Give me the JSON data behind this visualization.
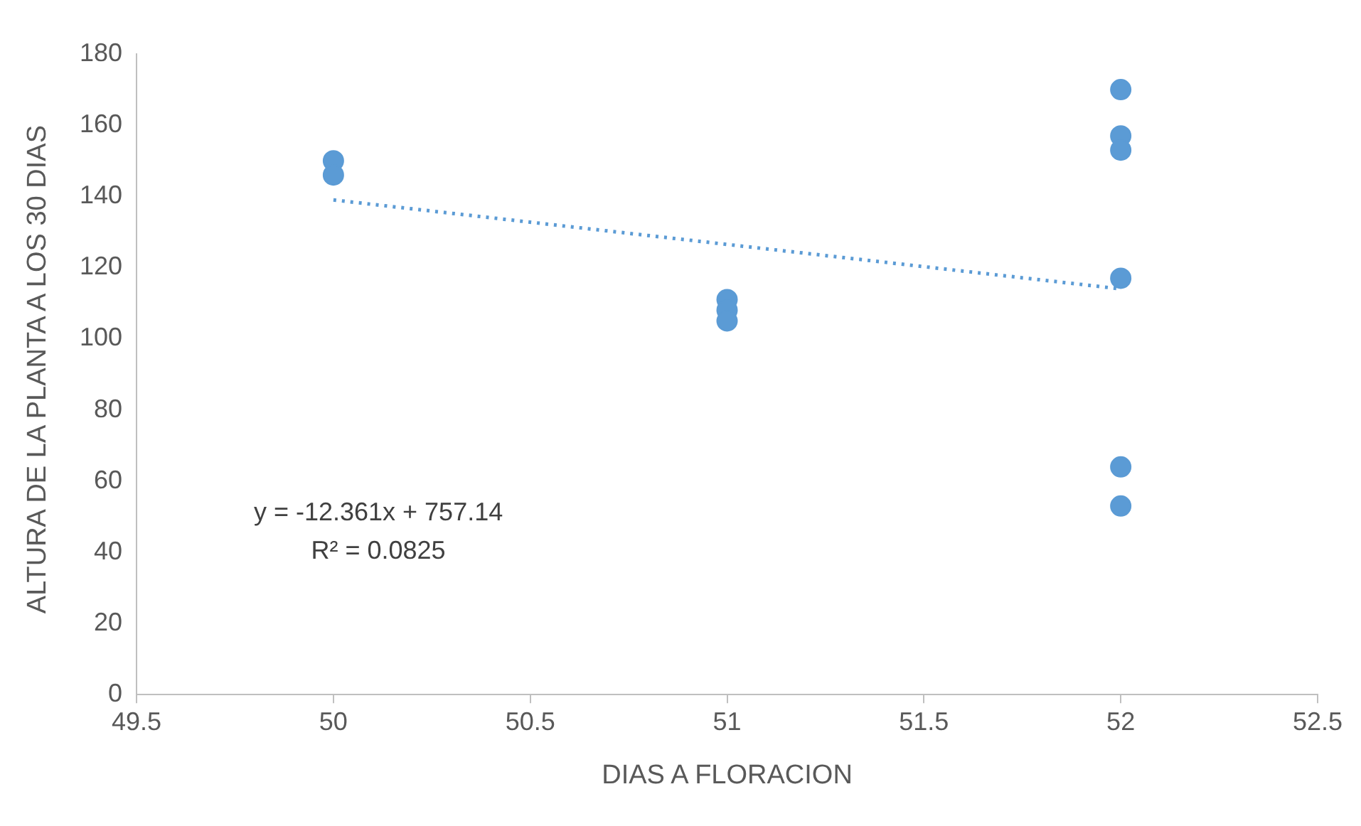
{
  "chart_data": {
    "type": "scatter",
    "xlabel": "DIAS A FLORACION",
    "ylabel": "ALTURA DE LA PLANTA A LOS 30 DIAS",
    "xlim": [
      49.5,
      52.5
    ],
    "xticks": [
      49.5,
      50,
      50.5,
      51,
      51.5,
      52,
      52.5
    ],
    "ylim": [
      0,
      180
    ],
    "yticks": [
      0,
      20,
      40,
      60,
      80,
      100,
      120,
      140,
      160,
      180
    ],
    "grid": false,
    "legend": false,
    "series": [
      {
        "color": "#5b9bd5",
        "marker": "circle",
        "x": [
          50,
          50,
          51,
          51,
          51,
          52,
          52,
          52,
          52,
          52,
          52
        ],
        "values": [
          150,
          146,
          111,
          108,
          105,
          170,
          157,
          153,
          117,
          64,
          53
        ]
      },
      {
        "type": "line",
        "color": "#5b9bd5",
        "marker": "none",
        "line_style": "dotted",
        "x": [
          50,
          52
        ],
        "values": [
          139,
          114
        ]
      }
    ],
    "annotations": [
      "y = -12.361x + 757.14",
      "R² = 0.0825"
    ]
  }
}
